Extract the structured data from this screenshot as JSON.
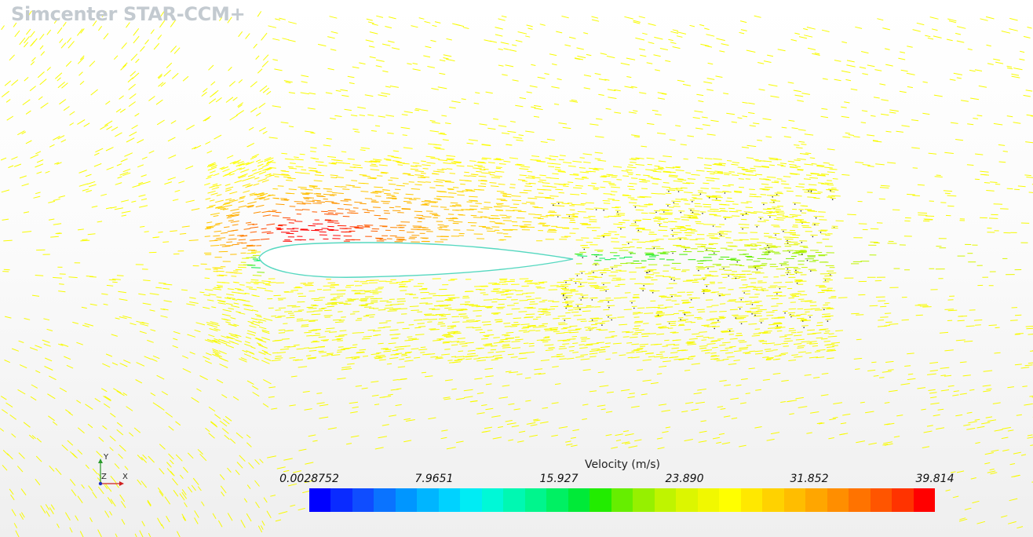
{
  "app": {
    "title": "Simcenter STAR-CCM+"
  },
  "triad": {
    "x": "X",
    "y": "Y",
    "z": "Z"
  },
  "legend": {
    "title": "Velocity (m/s)",
    "ticks": [
      "0.0028752",
      "7.9651",
      "15.927",
      "23.890",
      "31.852",
      "39.814"
    ],
    "colors": [
      "#0000ff",
      "#0a2bff",
      "#0f4dff",
      "#0a73ff",
      "#0096ff",
      "#00b5ff",
      "#00d2ff",
      "#00ecf4",
      "#00f8d7",
      "#00f8b2",
      "#00f58d",
      "#00f063",
      "#00ea38",
      "#22ec00",
      "#66ee00",
      "#96f000",
      "#bff400",
      "#dcf600",
      "#f1f800",
      "#ffff00",
      "#ffe800",
      "#ffd200",
      "#ffbd00",
      "#ffa600",
      "#ff8e00",
      "#ff7300",
      "#ff5500",
      "#ff3300",
      "#ff0000"
    ]
  },
  "scene": {
    "description_colors": {
      "freestream": "#d9ec3a",
      "wake": "#30e8c8",
      "stagnation": "#00e0ff",
      "suction_peak": "#ff2000"
    }
  }
}
